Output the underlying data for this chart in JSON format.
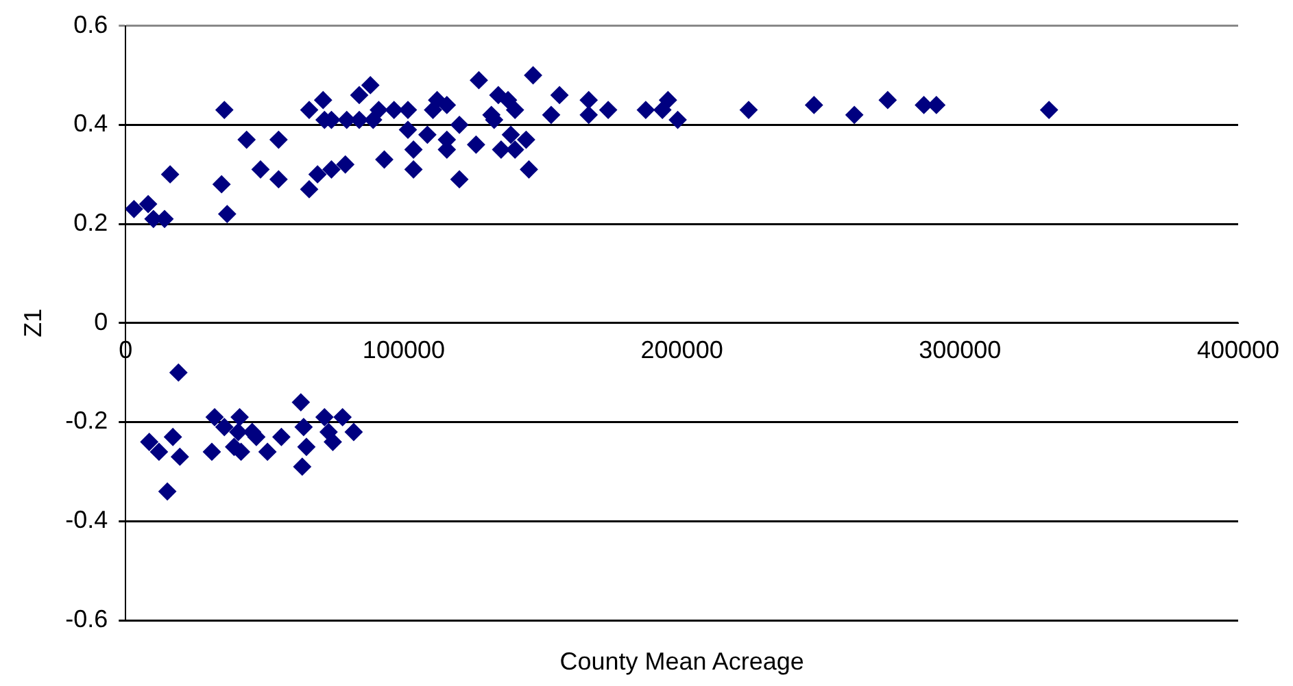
{
  "chart_data": {
    "type": "scatter",
    "xlabel": "County Mean Acreage",
    "ylabel": "Z1",
    "xlim": [
      0,
      400000
    ],
    "xticks": [
      0,
      100000,
      200000,
      300000,
      400000
    ],
    "ylim": [
      -0.6,
      0.6
    ],
    "yticks": [
      -0.6,
      -0.4,
      -0.2,
      0,
      0.2,
      0.4,
      0.6
    ],
    "grid": "y",
    "legend": false,
    "marker": "diamond",
    "x": [
      3000,
      8100,
      10000,
      14000,
      16000,
      35500,
      34500,
      36500,
      43500,
      48500,
      55000,
      55000,
      66000,
      66000,
      69000,
      71000,
      71500,
      74000,
      74000,
      79000,
      79500,
      84000,
      84000,
      88000,
      89000,
      91000,
      93000,
      96500,
      101500,
      101500,
      103500,
      103500,
      108500,
      110500,
      112000,
      115500,
      115500,
      115500,
      120000,
      120000,
      126000,
      127000,
      131500,
      132500,
      134000,
      135000,
      137500,
      138500,
      140000,
      140000,
      144000,
      145000,
      146500,
      156000,
      153000,
      166500,
      166500,
      173500,
      187000,
      193000,
      195000,
      198500,
      224000,
      247500,
      262000,
      274000,
      287000,
      291500,
      332000,
      19000,
      8500,
      12000,
      17000,
      19500,
      15000,
      32000,
      31000,
      35500,
      41000,
      40500,
      39000,
      41500,
      45500,
      47000,
      51000,
      56000,
      63000,
      64000,
      65000,
      63500,
      71500,
      73000,
      74500,
      78000,
      82000
    ],
    "series": [
      {
        "color": "#000080",
        "values": [
          0.23,
          0.24,
          0.21,
          0.21,
          0.3,
          0.43,
          0.28,
          0.22,
          0.37,
          0.31,
          0.37,
          0.29,
          0.43,
          0.27,
          0.3,
          0.45,
          0.41,
          0.41,
          0.31,
          0.32,
          0.41,
          0.46,
          0.41,
          0.48,
          0.41,
          0.43,
          0.33,
          0.43,
          0.43,
          0.39,
          0.35,
          0.31,
          0.38,
          0.43,
          0.45,
          0.44,
          0.37,
          0.35,
          0.4,
          0.29,
          0.36,
          0.49,
          0.42,
          0.41,
          0.46,
          0.35,
          0.45,
          0.38,
          0.43,
          0.35,
          0.37,
          0.31,
          0.5,
          0.46,
          0.42,
          0.45,
          0.42,
          0.43,
          0.43,
          0.43,
          0.45,
          0.41,
          0.43,
          0.44,
          0.42,
          0.45,
          0.44,
          0.44,
          0.43,
          -0.1,
          -0.24,
          -0.26,
          -0.23,
          -0.27,
          -0.34,
          -0.19,
          -0.26,
          -0.21,
          -0.19,
          -0.22,
          -0.25,
          -0.26,
          -0.22,
          -0.23,
          -0.26,
          -0.23,
          -0.16,
          -0.21,
          -0.25,
          -0.29,
          -0.19,
          -0.22,
          -0.24,
          -0.19,
          -0.22
        ]
      }
    ]
  }
}
